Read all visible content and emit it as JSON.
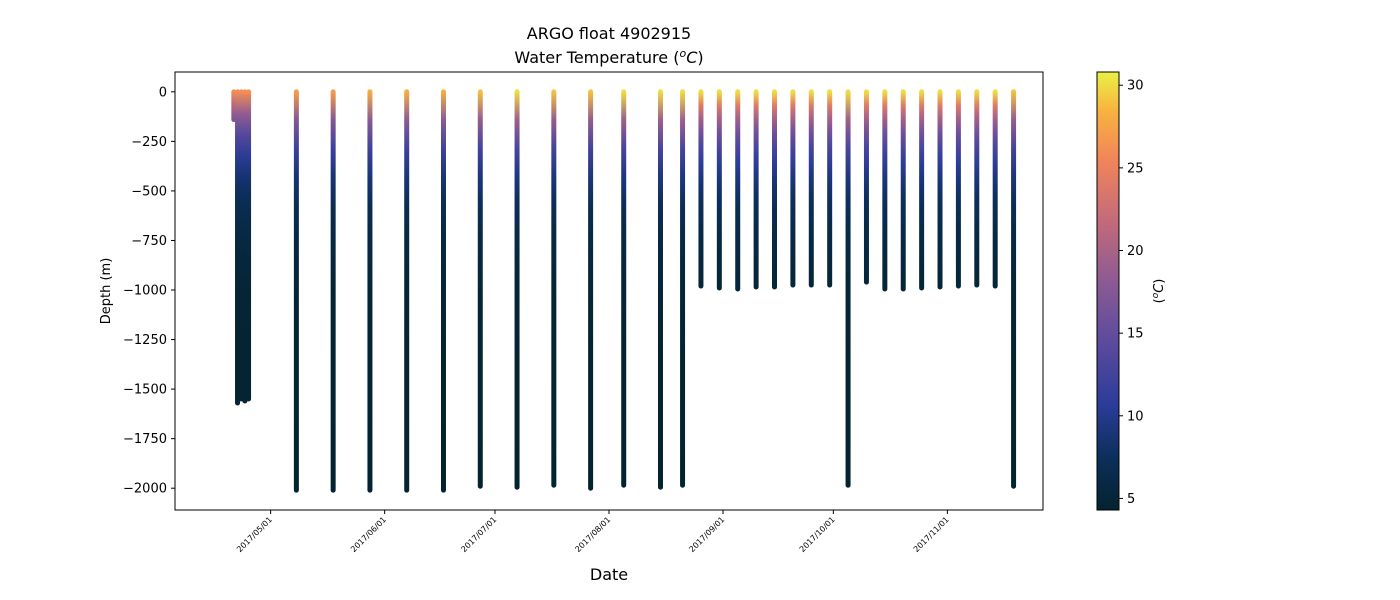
{
  "chart_data": {
    "type": "scatter",
    "title_line1": "ARGO float 4902915",
    "title_line2": "Water Temperature (",
    "title_unit": "o",
    "title_unit_c": "C",
    "title_close": ")",
    "xlabel": "Date",
    "ylabel": "Depth (m)",
    "colorbar_label_open": "(",
    "colorbar_label_o": "o",
    "colorbar_label_c": "C",
    "colorbar_label_close": ")",
    "colormap": "thermal",
    "colorbar_range": [
      4.3,
      30.8
    ],
    "colorbar_ticks": [
      5,
      10,
      15,
      20,
      25,
      30
    ],
    "colorbar_tick_labels": [
      "5",
      "10",
      "15",
      "20",
      "25",
      "30"
    ],
    "x_axis_type": "date",
    "xlim": [
      "2017-04-05",
      "2017-11-27"
    ],
    "ylim": [
      -2110,
      100
    ],
    "x_ticks": [
      "2017-05-01",
      "2017-06-01",
      "2017-07-01",
      "2017-08-01",
      "2017-09-01",
      "2017-10-01",
      "2017-11-01"
    ],
    "x_tick_labels": [
      "2017/05/01",
      "2017/06/01",
      "2017/07/01",
      "2017/08/01",
      "2017/09/01",
      "2017/10/01",
      "2017/11/01"
    ],
    "y_ticks": [
      0,
      -250,
      -500,
      -750,
      -1000,
      -1250,
      -1500,
      -1750,
      -2000
    ],
    "y_tick_labels": [
      "0",
      "−250",
      "−500",
      "−750",
      "−1000",
      "−1250",
      "−1500",
      "−1750",
      "−2000"
    ],
    "grid": false,
    "early_cluster": {
      "dates": [
        "2017-04-21",
        "2017-04-22",
        "2017-04-23",
        "2017-04-24",
        "2017-04-25"
      ],
      "max_depths": [
        -140,
        -1570,
        -1550,
        -1560,
        -1550
      ],
      "surface_temperature": 26
    },
    "profiles": [
      {
        "date": "2017-05-08",
        "max_depth": -2010,
        "surface_temperature": 27
      },
      {
        "date": "2017-05-18",
        "max_depth": -2010,
        "surface_temperature": 27
      },
      {
        "date": "2017-05-28",
        "max_depth": -2010,
        "surface_temperature": 28
      },
      {
        "date": "2017-06-07",
        "max_depth": -2010,
        "surface_temperature": 28
      },
      {
        "date": "2017-06-17",
        "max_depth": -2010,
        "surface_temperature": 28
      },
      {
        "date": "2017-06-27",
        "max_depth": -1990,
        "surface_temperature": 29
      },
      {
        "date": "2017-07-07",
        "max_depth": -1995,
        "surface_temperature": 30
      },
      {
        "date": "2017-07-17",
        "max_depth": -1985,
        "surface_temperature": 29
      },
      {
        "date": "2017-07-27",
        "max_depth": -2000,
        "surface_temperature": 29
      },
      {
        "date": "2017-08-05",
        "max_depth": -1985,
        "surface_temperature": 30
      },
      {
        "date": "2017-08-15",
        "max_depth": -1995,
        "surface_temperature": 30
      },
      {
        "date": "2017-08-21",
        "max_depth": -1985,
        "surface_temperature": 30
      },
      {
        "date": "2017-08-26",
        "max_depth": -980,
        "surface_temperature": 30
      },
      {
        "date": "2017-08-31",
        "max_depth": -990,
        "surface_temperature": 30
      },
      {
        "date": "2017-09-05",
        "max_depth": -995,
        "surface_temperature": 30
      },
      {
        "date": "2017-09-10",
        "max_depth": -985,
        "surface_temperature": 30
      },
      {
        "date": "2017-09-15",
        "max_depth": -985,
        "surface_temperature": 30
      },
      {
        "date": "2017-09-20",
        "max_depth": -975,
        "surface_temperature": 30
      },
      {
        "date": "2017-09-25",
        "max_depth": -975,
        "surface_temperature": 30
      },
      {
        "date": "2017-09-30",
        "max_depth": -975,
        "surface_temperature": 30
      },
      {
        "date": "2017-10-05",
        "max_depth": -1985,
        "surface_temperature": 30
      },
      {
        "date": "2017-10-10",
        "max_depth": -960,
        "surface_temperature": 30
      },
      {
        "date": "2017-10-15",
        "max_depth": -995,
        "surface_temperature": 30
      },
      {
        "date": "2017-10-20",
        "max_depth": -995,
        "surface_temperature": 30
      },
      {
        "date": "2017-10-25",
        "max_depth": -990,
        "surface_temperature": 30
      },
      {
        "date": "2017-10-30",
        "max_depth": -985,
        "surface_temperature": 30
      },
      {
        "date": "2017-11-04",
        "max_depth": -980,
        "surface_temperature": 30
      },
      {
        "date": "2017-11-09",
        "max_depth": -975,
        "surface_temperature": 30
      },
      {
        "date": "2017-11-14",
        "max_depth": -980,
        "surface_temperature": 30
      },
      {
        "date": "2017-11-19",
        "max_depth": -1990,
        "surface_temperature": 29
      }
    ]
  }
}
